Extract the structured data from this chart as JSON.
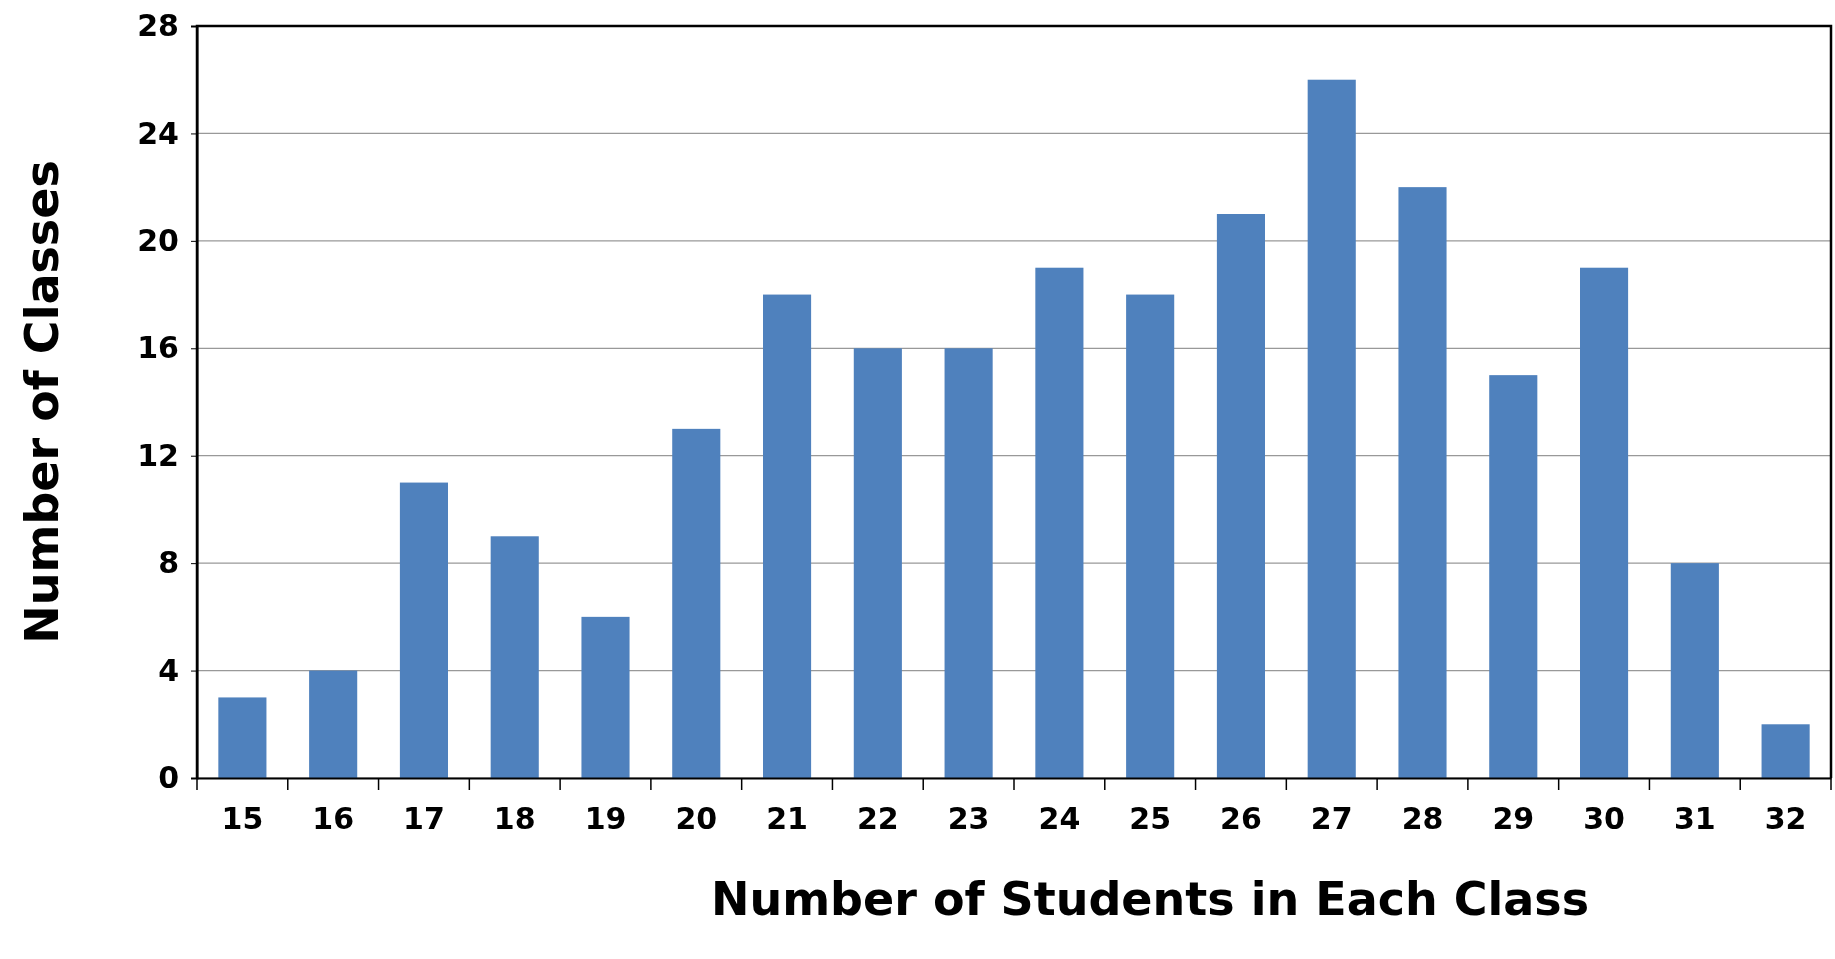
{
  "chart_data": {
    "type": "bar",
    "xlabel": "Number of Students in Each Class",
    "ylabel": "Number of Classes",
    "categories": [
      "15",
      "16",
      "17",
      "18",
      "19",
      "20",
      "21",
      "22",
      "23",
      "24",
      "25",
      "26",
      "27",
      "28",
      "29",
      "30",
      "31",
      "32"
    ],
    "values": [
      3,
      4,
      11,
      9,
      6,
      13,
      18,
      16,
      16,
      19,
      18,
      21,
      26,
      22,
      15,
      19,
      8,
      2
    ],
    "color": "#4f81bd",
    "ylim": [
      0,
      28
    ],
    "yticks": [
      0,
      4,
      8,
      12,
      16,
      20,
      24,
      28
    ],
    "grid": "y"
  }
}
